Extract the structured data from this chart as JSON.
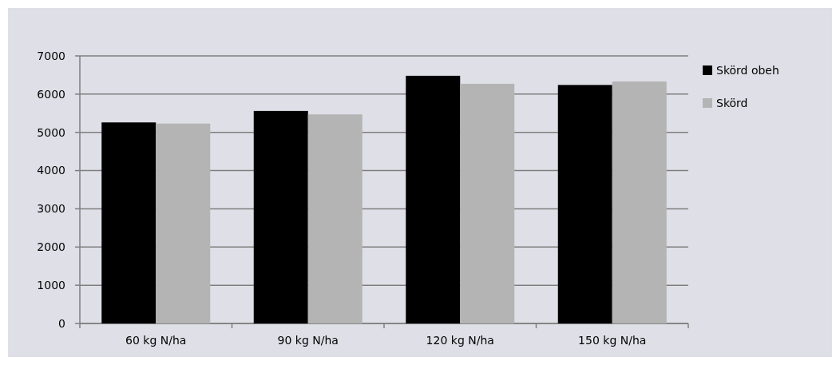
{
  "chart_data": {
    "type": "bar",
    "categories": [
      "60 kg N/ha",
      "90 kg N/ha",
      "120 kg N/ha",
      "150 kg N/ha"
    ],
    "series": [
      {
        "name": "Skörd obeh",
        "color": "#000000",
        "values": [
          5260,
          5560,
          6480,
          6240
        ]
      },
      {
        "name": "Skörd",
        "color": "#b3b4b3",
        "values": [
          5230,
          5470,
          6270,
          6330
        ]
      }
    ],
    "ylim": [
      0,
      7000
    ],
    "yticks": [
      0,
      1000,
      2000,
      3000,
      4000,
      5000,
      6000,
      7000
    ],
    "grid": "y",
    "legend": "right"
  }
}
